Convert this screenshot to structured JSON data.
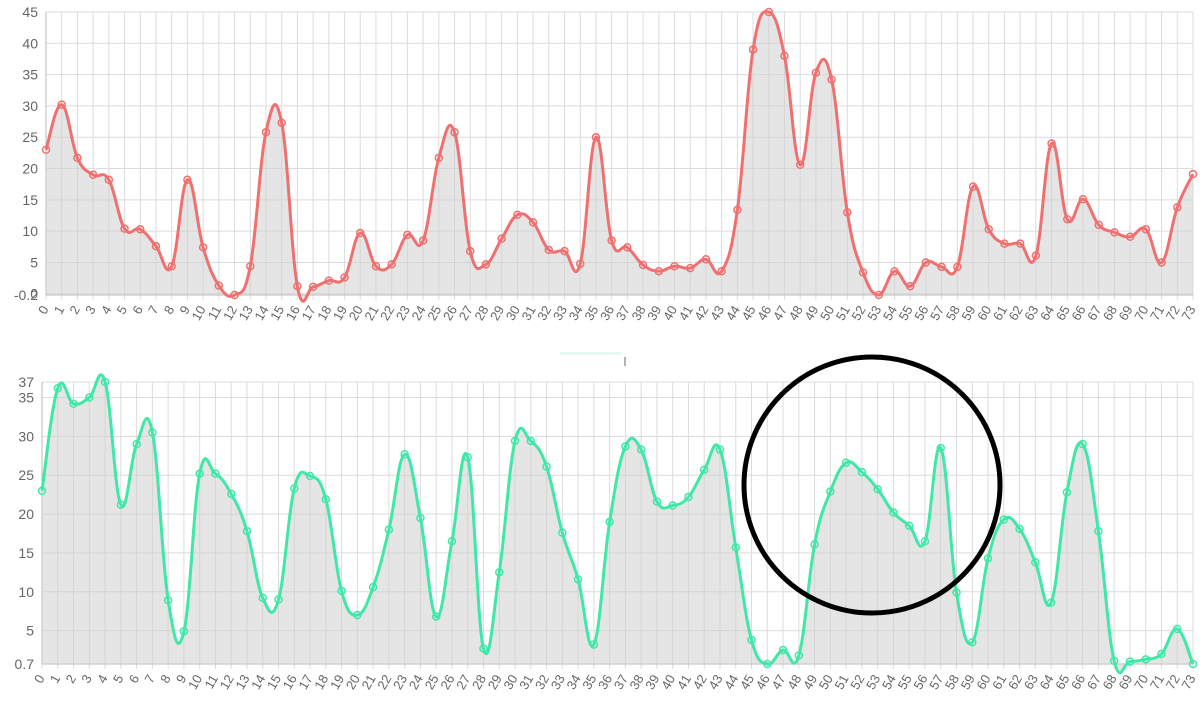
{
  "chart_data": [
    {
      "type": "area",
      "x": [
        0,
        1,
        2,
        3,
        4,
        5,
        6,
        7,
        8,
        9,
        10,
        11,
        12,
        13,
        14,
        15,
        16,
        17,
        18,
        19,
        20,
        21,
        22,
        23,
        24,
        25,
        26,
        27,
        28,
        29,
        30,
        31,
        32,
        33,
        34,
        35,
        36,
        37,
        38,
        39,
        40,
        41,
        42,
        43,
        44,
        45,
        46,
        47,
        48,
        49,
        50,
        51,
        52,
        53,
        54,
        55,
        56,
        57,
        58,
        59,
        60,
        61,
        62,
        63,
        64,
        65,
        66,
        67,
        68,
        69,
        70,
        71,
        72,
        73
      ],
      "values": [
        23,
        30.2,
        21.7,
        19,
        18.2,
        10.4,
        10.3,
        7.6,
        4.4,
        18.2,
        7.4,
        1.3,
        -0.2,
        4.4,
        25.8,
        27.3,
        1.2,
        1.1,
        2.1,
        2.6,
        9.7,
        4.4,
        4.7,
        9.4,
        8.5,
        21.7,
        25.8,
        6.8,
        4.7,
        8.8,
        12.6,
        11.4,
        7,
        6.8,
        4.8,
        25,
        8.5,
        7.4,
        4.6,
        3.6,
        4.4,
        4.1,
        5.5,
        3.6,
        13.4,
        39,
        45,
        38,
        20.6,
        35.3,
        34.2,
        13,
        3.4,
        -0.2,
        3.6,
        1.2,
        5,
        4.3,
        4.3,
        17.1,
        10.3,
        8,
        8,
        6.1,
        24,
        11.9,
        15.1,
        11,
        9.8,
        9.1,
        10.3,
        5,
        13.8,
        19.1
      ],
      "ylim": [
        -0.2,
        45
      ],
      "yticks": [
        "-0.2",
        "0",
        "5",
        "10",
        "15",
        "20",
        "25",
        "30",
        "35",
        "40",
        "45"
      ],
      "ytick_values": [
        -0.2,
        0,
        5,
        10,
        15,
        20,
        25,
        30,
        35,
        40,
        45
      ],
      "color": "#f07070",
      "grid": true,
      "legend": "none"
    },
    {
      "type": "area",
      "x": [
        0,
        1,
        2,
        3,
        4,
        5,
        6,
        7,
        8,
        9,
        10,
        11,
        12,
        13,
        14,
        15,
        16,
        17,
        18,
        19,
        20,
        21,
        22,
        23,
        24,
        25,
        26,
        27,
        28,
        29,
        30,
        31,
        32,
        33,
        34,
        35,
        36,
        37,
        38,
        39,
        40,
        41,
        42,
        43,
        44,
        45,
        46,
        47,
        48,
        49,
        50,
        51,
        52,
        53,
        54,
        55,
        56,
        57,
        58,
        59,
        60,
        61,
        62,
        63,
        64,
        65,
        66,
        67,
        68,
        69,
        70,
        71,
        72,
        73
      ],
      "values": [
        23,
        36.2,
        34.2,
        35,
        37,
        21.2,
        29,
        30.5,
        8.9,
        4.9,
        25.2,
        25.2,
        22.6,
        17.8,
        9.2,
        9,
        23.3,
        24.9,
        21.9,
        10.1,
        7,
        10.6,
        18,
        27.7,
        19.5,
        6.8,
        16.5,
        27.3,
        2.7,
        12.5,
        29.4,
        29.4,
        26.1,
        17.6,
        11.6,
        3.2,
        19,
        28.7,
        28.3,
        21.6,
        21.1,
        22.2,
        25.7,
        28.3,
        15.7,
        3.8,
        0.7,
        2.5,
        1.8,
        16.1,
        22.9,
        26.6,
        25.4,
        23.2,
        20.2,
        18.5,
        16.5,
        28.5,
        9.9,
        3.5,
        14.3,
        19.3,
        18.1,
        13.8,
        8.6,
        22.8,
        29,
        17.8,
        1.1,
        1,
        1.3,
        2,
        5.2,
        0.7
      ],
      "ylim": [
        0.7,
        37
      ],
      "yticks": [
        "0.7",
        "5",
        "10",
        "15",
        "20",
        "25",
        "30",
        "35",
        "37"
      ],
      "ytick_values": [
        0.7,
        5,
        10,
        15,
        20,
        25,
        30,
        35,
        37
      ],
      "color": "#40e8a8",
      "grid": true,
      "legend": "none"
    }
  ],
  "annotation": {
    "shape": "circle",
    "color": "#000000"
  }
}
